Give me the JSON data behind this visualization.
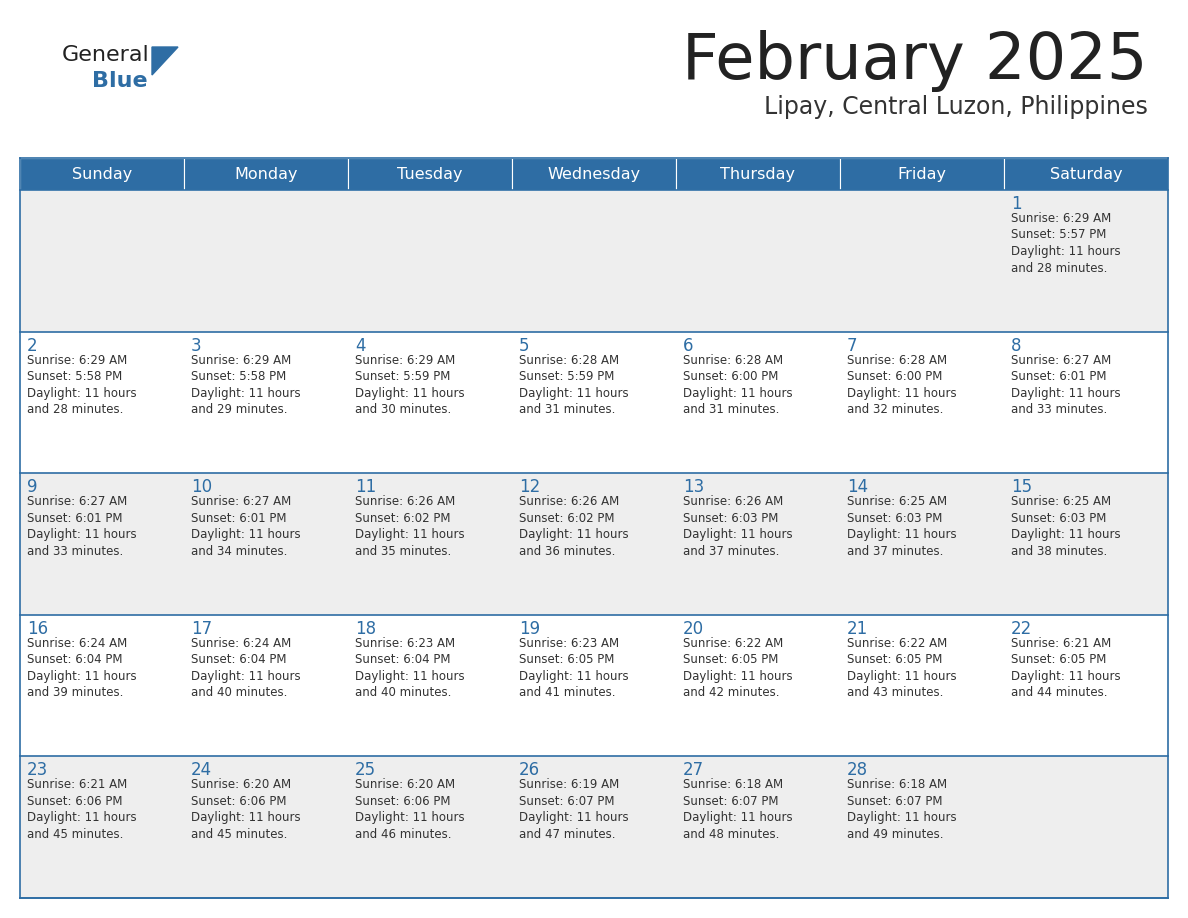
{
  "title": "February 2025",
  "subtitle": "Lipay, Central Luzon, Philippines",
  "days_of_week": [
    "Sunday",
    "Monday",
    "Tuesday",
    "Wednesday",
    "Thursday",
    "Friday",
    "Saturday"
  ],
  "header_bg": "#2E6DA4",
  "header_text": "#FFFFFF",
  "row0_bg": "#EEEEEE",
  "row1_bg": "#FFFFFF",
  "row2_bg": "#EEEEEE",
  "row3_bg": "#FFFFFF",
  "row4_bg": "#EEEEEE",
  "cell_text_color": "#333333",
  "day_num_color": "#2E6DA4",
  "title_color": "#222222",
  "subtitle_color": "#333333",
  "logo_general_color": "#222222",
  "logo_blue_color": "#2E6DA4",
  "separator_color": "#2E6DA4",
  "calendar_data": [
    [
      {
        "day": null,
        "sunrise": null,
        "sunset": null,
        "daylight": null
      },
      {
        "day": null,
        "sunrise": null,
        "sunset": null,
        "daylight": null
      },
      {
        "day": null,
        "sunrise": null,
        "sunset": null,
        "daylight": null
      },
      {
        "day": null,
        "sunrise": null,
        "sunset": null,
        "daylight": null
      },
      {
        "day": null,
        "sunrise": null,
        "sunset": null,
        "daylight": null
      },
      {
        "day": null,
        "sunrise": null,
        "sunset": null,
        "daylight": null
      },
      {
        "day": 1,
        "sunrise": "6:29 AM",
        "sunset": "5:57 PM",
        "daylight": "11 hours and 28 minutes."
      }
    ],
    [
      {
        "day": 2,
        "sunrise": "6:29 AM",
        "sunset": "5:58 PM",
        "daylight": "11 hours and 28 minutes."
      },
      {
        "day": 3,
        "sunrise": "6:29 AM",
        "sunset": "5:58 PM",
        "daylight": "11 hours and 29 minutes."
      },
      {
        "day": 4,
        "sunrise": "6:29 AM",
        "sunset": "5:59 PM",
        "daylight": "11 hours and 30 minutes."
      },
      {
        "day": 5,
        "sunrise": "6:28 AM",
        "sunset": "5:59 PM",
        "daylight": "11 hours and 31 minutes."
      },
      {
        "day": 6,
        "sunrise": "6:28 AM",
        "sunset": "6:00 PM",
        "daylight": "11 hours and 31 minutes."
      },
      {
        "day": 7,
        "sunrise": "6:28 AM",
        "sunset": "6:00 PM",
        "daylight": "11 hours and 32 minutes."
      },
      {
        "day": 8,
        "sunrise": "6:27 AM",
        "sunset": "6:01 PM",
        "daylight": "11 hours and 33 minutes."
      }
    ],
    [
      {
        "day": 9,
        "sunrise": "6:27 AM",
        "sunset": "6:01 PM",
        "daylight": "11 hours and 33 minutes."
      },
      {
        "day": 10,
        "sunrise": "6:27 AM",
        "sunset": "6:01 PM",
        "daylight": "11 hours and 34 minutes."
      },
      {
        "day": 11,
        "sunrise": "6:26 AM",
        "sunset": "6:02 PM",
        "daylight": "11 hours and 35 minutes."
      },
      {
        "day": 12,
        "sunrise": "6:26 AM",
        "sunset": "6:02 PM",
        "daylight": "11 hours and 36 minutes."
      },
      {
        "day": 13,
        "sunrise": "6:26 AM",
        "sunset": "6:03 PM",
        "daylight": "11 hours and 37 minutes."
      },
      {
        "day": 14,
        "sunrise": "6:25 AM",
        "sunset": "6:03 PM",
        "daylight": "11 hours and 37 minutes."
      },
      {
        "day": 15,
        "sunrise": "6:25 AM",
        "sunset": "6:03 PM",
        "daylight": "11 hours and 38 minutes."
      }
    ],
    [
      {
        "day": 16,
        "sunrise": "6:24 AM",
        "sunset": "6:04 PM",
        "daylight": "11 hours and 39 minutes."
      },
      {
        "day": 17,
        "sunrise": "6:24 AM",
        "sunset": "6:04 PM",
        "daylight": "11 hours and 40 minutes."
      },
      {
        "day": 18,
        "sunrise": "6:23 AM",
        "sunset": "6:04 PM",
        "daylight": "11 hours and 40 minutes."
      },
      {
        "day": 19,
        "sunrise": "6:23 AM",
        "sunset": "6:05 PM",
        "daylight": "11 hours and 41 minutes."
      },
      {
        "day": 20,
        "sunrise": "6:22 AM",
        "sunset": "6:05 PM",
        "daylight": "11 hours and 42 minutes."
      },
      {
        "day": 21,
        "sunrise": "6:22 AM",
        "sunset": "6:05 PM",
        "daylight": "11 hours and 43 minutes."
      },
      {
        "day": 22,
        "sunrise": "6:21 AM",
        "sunset": "6:05 PM",
        "daylight": "11 hours and 44 minutes."
      }
    ],
    [
      {
        "day": 23,
        "sunrise": "6:21 AM",
        "sunset": "6:06 PM",
        "daylight": "11 hours and 45 minutes."
      },
      {
        "day": 24,
        "sunrise": "6:20 AM",
        "sunset": "6:06 PM",
        "daylight": "11 hours and 45 minutes."
      },
      {
        "day": 25,
        "sunrise": "6:20 AM",
        "sunset": "6:06 PM",
        "daylight": "11 hours and 46 minutes."
      },
      {
        "day": 26,
        "sunrise": "6:19 AM",
        "sunset": "6:07 PM",
        "daylight": "11 hours and 47 minutes."
      },
      {
        "day": 27,
        "sunrise": "6:18 AM",
        "sunset": "6:07 PM",
        "daylight": "11 hours and 48 minutes."
      },
      {
        "day": 28,
        "sunrise": "6:18 AM",
        "sunset": "6:07 PM",
        "daylight": "11 hours and 49 minutes."
      },
      {
        "day": null,
        "sunrise": null,
        "sunset": null,
        "daylight": null
      }
    ]
  ]
}
